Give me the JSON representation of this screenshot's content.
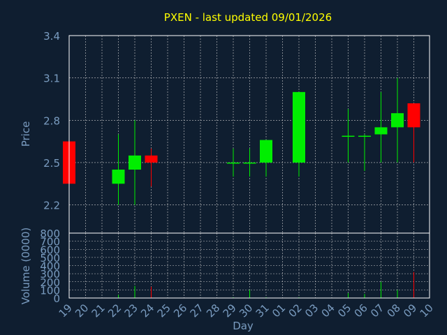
{
  "chart_data": {
    "type": "candlestick",
    "title": "PXEN - last updated 09/01/2026",
    "xlabel": "Day",
    "price": {
      "ylabel": "Price",
      "ylim": [
        2.0,
        3.4
      ],
      "yticks": [
        "3.4",
        "3.1",
        "2.8",
        "2.5",
        "2.2"
      ],
      "grid": true
    },
    "volume": {
      "ylabel": "Volume (0000)",
      "ylim": [
        0,
        800
      ],
      "yticks": [
        "800",
        "700",
        "600",
        "500",
        "400",
        "300",
        "200",
        "100",
        "0"
      ],
      "grid": true
    },
    "days": [
      "19",
      "20",
      "21",
      "22",
      "23",
      "24",
      "25",
      "26",
      "27",
      "28",
      "29",
      "30",
      "31",
      "01",
      "02",
      "03",
      "04",
      "05",
      "06",
      "07",
      "08",
      "09",
      "10"
    ],
    "candles": [
      {
        "day": "19",
        "open": 2.65,
        "high": 2.65,
        "low": 2.35,
        "close": 2.35,
        "volume": 10
      },
      {
        "day": "22",
        "open": 2.35,
        "high": 2.7,
        "low": 2.2,
        "close": 2.45,
        "volume": 40
      },
      {
        "day": "23",
        "open": 2.45,
        "high": 2.8,
        "low": 2.2,
        "close": 2.55,
        "volume": 150
      },
      {
        "day": "24",
        "open": 2.55,
        "high": 2.6,
        "low": 2.33,
        "close": 2.5,
        "volume": 140
      },
      {
        "day": "29",
        "open": 2.5,
        "high": 2.6,
        "low": 2.4,
        "close": 2.5,
        "volume": 10
      },
      {
        "day": "30",
        "open": 2.5,
        "high": 2.6,
        "low": 2.4,
        "close": 2.5,
        "volume": 100
      },
      {
        "day": "31",
        "open": 2.5,
        "high": 2.66,
        "low": 2.4,
        "close": 2.66,
        "volume": 10
      },
      {
        "day": "02",
        "open": 2.5,
        "high": 3.0,
        "low": 2.4,
        "close": 3.0,
        "volume": 10
      },
      {
        "day": "05",
        "open": 2.69,
        "high": 2.88,
        "low": 2.5,
        "close": 2.69,
        "volume": 60
      },
      {
        "day": "06",
        "open": 2.69,
        "high": 2.7,
        "low": 2.44,
        "close": 2.69,
        "volume": 50
      },
      {
        "day": "07",
        "open": 2.7,
        "high": 3.0,
        "low": 2.5,
        "close": 2.75,
        "volume": 200
      },
      {
        "day": "08",
        "open": 2.75,
        "high": 3.1,
        "low": 2.5,
        "close": 2.85,
        "volume": 100
      },
      {
        "day": "09",
        "open": 2.92,
        "high": 2.92,
        "low": 2.5,
        "close": 2.75,
        "volume": 320
      }
    ],
    "colors": {
      "background": "#0f1e30",
      "up": "#00ee00",
      "down": "#ff0000",
      "grid": "#cccccc",
      "frame": "#ffffff",
      "title": "#ffff00",
      "label": "#7a9cc0"
    }
  }
}
